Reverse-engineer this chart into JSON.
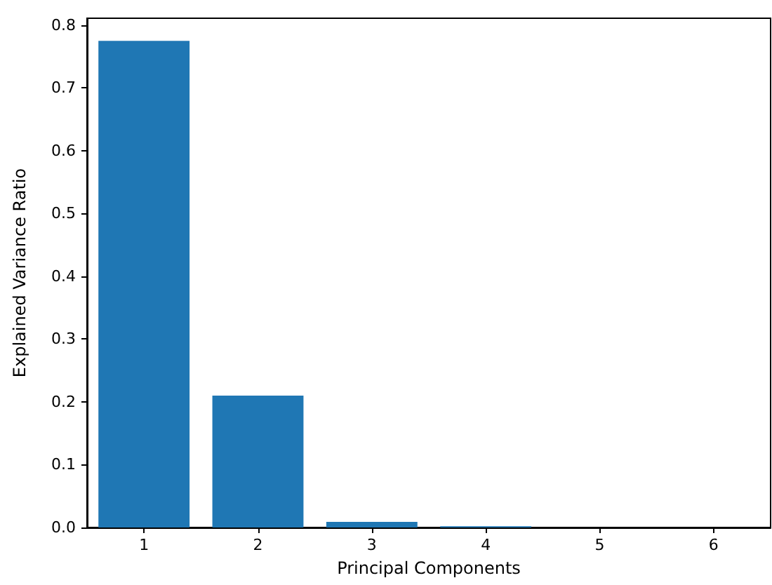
{
  "chart_data": {
    "type": "bar",
    "xlabel": "Principal Components",
    "ylabel": "Explained Variance Ratio",
    "categories": [
      "1",
      "2",
      "3",
      "4",
      "5",
      "6"
    ],
    "values": [
      0.775,
      0.21,
      0.009,
      0.002,
      0,
      0
    ],
    "color": "#1f77b4",
    "ylim": [
      0,
      0.811
    ],
    "yticks": [
      {
        "value": 0,
        "label": "0.0"
      },
      0.1,
      0.2,
      0.3,
      0.4,
      0.5,
      0.6,
      0.7,
      0.8
    ],
    "grid": false
  }
}
